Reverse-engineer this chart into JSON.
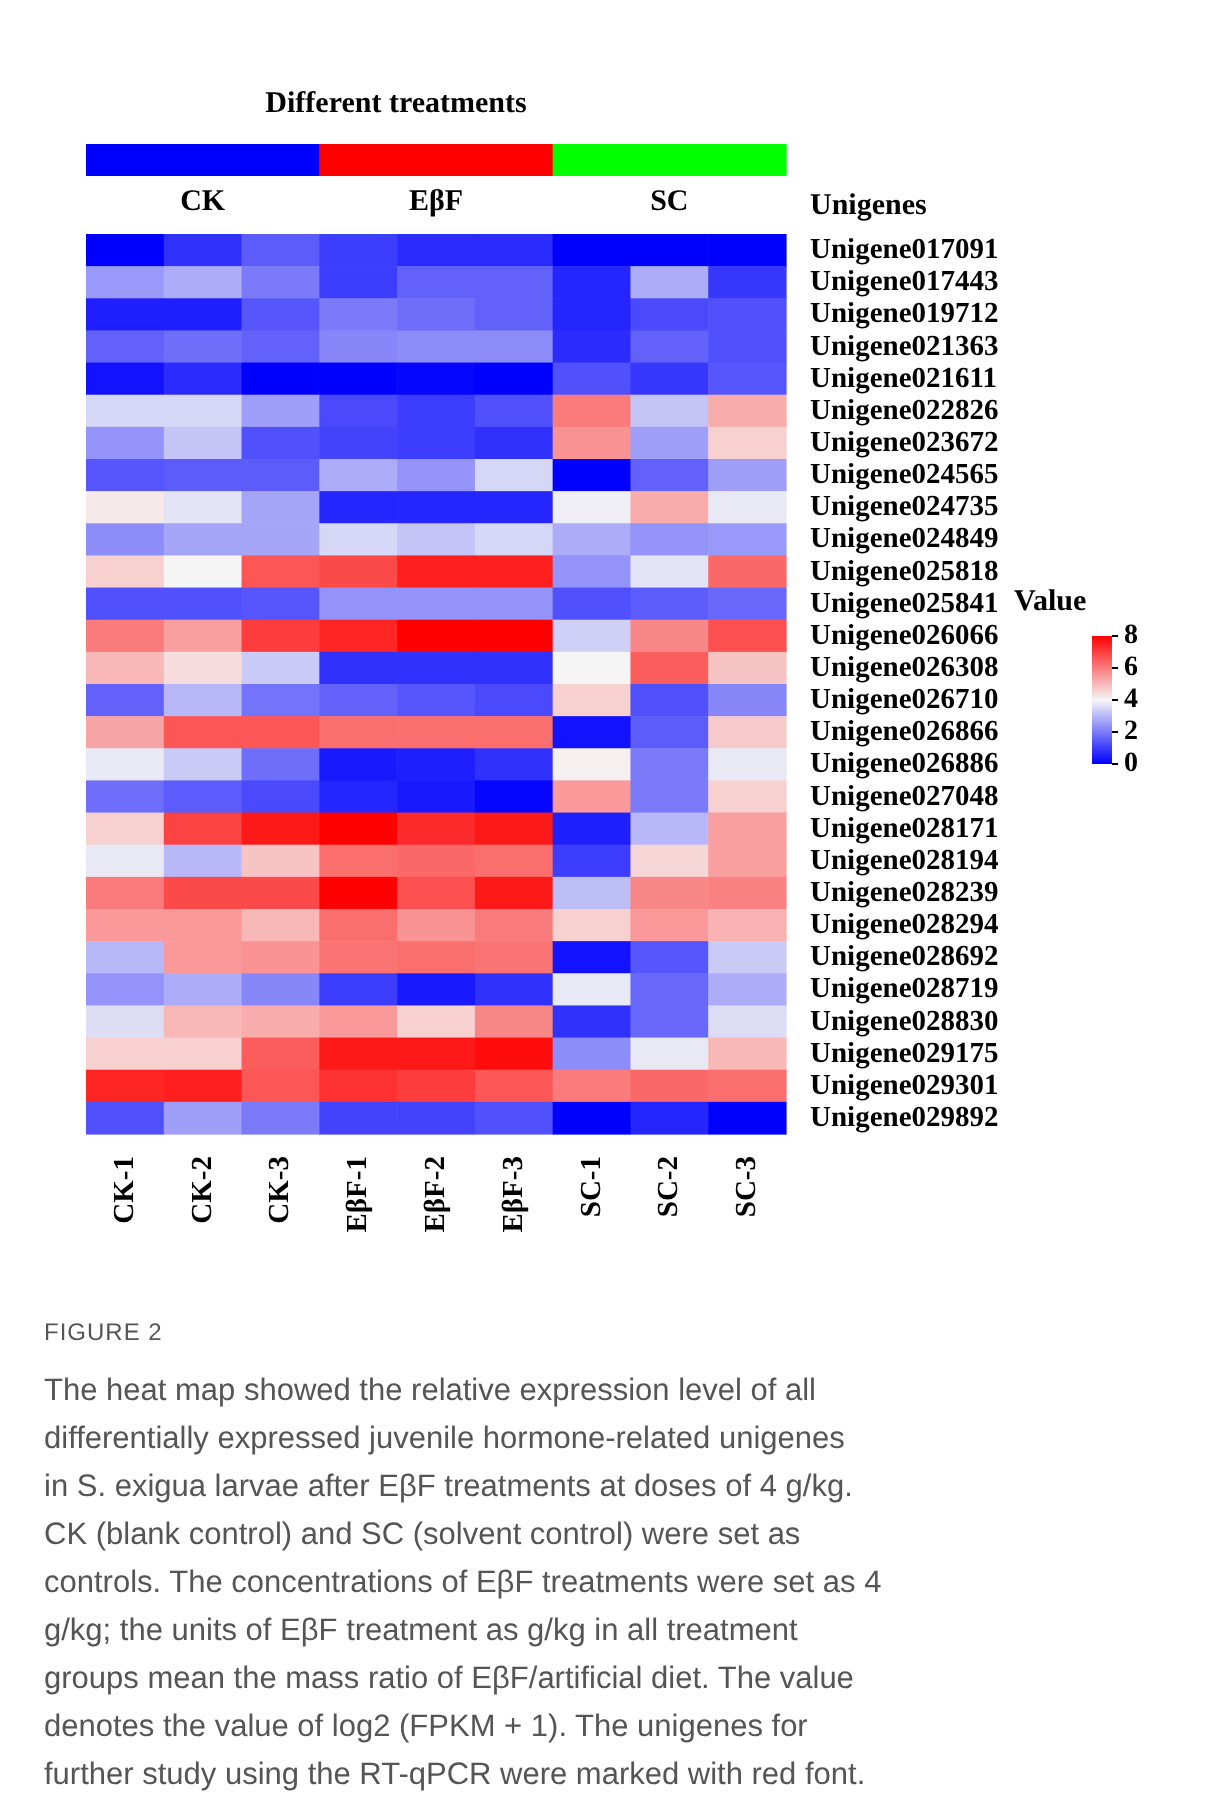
{
  "chart_data": {
    "type": "heatmap",
    "title": "Different treatments",
    "ylabel": "Unigenes",
    "clabel": "Value",
    "categories": [
      "CK-1",
      "CK-2",
      "CK-3",
      "EβF-1",
      "EβF-2",
      "EβF-3",
      "SC-1",
      "SC-2",
      "SC-3"
    ],
    "y_categories": [
      "Unigene017091",
      "Unigene017443",
      "Unigene019712",
      "Unigene021363",
      "Unigene021611",
      "Unigene022826",
      "Unigene023672",
      "Unigene024565",
      "Unigene024735",
      "Unigene024849",
      "Unigene025818",
      "Unigene025841",
      "Unigene026066",
      "Unigene026308",
      "Unigene026710",
      "Unigene026866",
      "Unigene026886",
      "Unigene027048",
      "Unigene028171",
      "Unigene028194",
      "Unigene028239",
      "Unigene028294",
      "Unigene028692",
      "Unigene028719",
      "Unigene028830",
      "Unigene029175",
      "Unigene029301",
      "Unigene029892"
    ],
    "cells": [
      [
        0,
        0.8,
        1.5,
        1,
        0.7,
        0.7,
        0,
        0,
        0
      ],
      [
        2.5,
        2.8,
        2,
        1,
        1.6,
        1.6,
        0.6,
        2.8,
        0.9
      ],
      [
        0.5,
        0.5,
        1.4,
        2,
        1.8,
        1.6,
        0.6,
        1.2,
        1.3
      ],
      [
        1.6,
        1.8,
        1.6,
        2.2,
        2.3,
        2.3,
        0.7,
        1.6,
        1.3
      ],
      [
        0.3,
        0.7,
        0,
        0,
        0.1,
        0,
        1.3,
        0.9,
        1.4
      ],
      [
        3.5,
        3.5,
        2.6,
        1.2,
        1,
        1.3,
        6,
        3.2,
        5.2
      ],
      [
        2.4,
        3.2,
        1.3,
        1.1,
        1,
        0.8,
        5.6,
        2.6,
        4.6
      ],
      [
        1.4,
        1.5,
        1.5,
        2.8,
        2.4,
        3.5,
        0,
        1.6,
        2.6
      ],
      [
        4.2,
        3.7,
        2.7,
        0.6,
        0.6,
        0.6,
        3.9,
        5.2,
        3.8
      ],
      [
        2.3,
        2.7,
        2.7,
        3.5,
        3.2,
        3.5,
        2.8,
        2.4,
        2.5
      ],
      [
        4.6,
        4,
        6.6,
        6.8,
        7.5,
        7.5,
        2.4,
        3.7,
        6.3
      ],
      [
        1.3,
        1.3,
        1.4,
        2.4,
        2.4,
        2.4,
        1.3,
        1.5,
        1.7
      ],
      [
        6,
        5.4,
        7,
        7.4,
        8,
        8,
        3.4,
        5.8,
        6.7
      ],
      [
        5,
        4.4,
        3.3,
        0.8,
        0.8,
        0.8,
        4,
        6.5,
        4.8
      ],
      [
        1.6,
        3,
        1.9,
        1.6,
        1.4,
        1.2,
        4.6,
        1.3,
        2.2
      ],
      [
        5.3,
        6.6,
        6.6,
        6.2,
        6.2,
        6.2,
        0.3,
        1.5,
        4.7
      ],
      [
        3.8,
        3.3,
        1.8,
        0.4,
        0.5,
        0.8,
        4.1,
        2,
        3.8
      ],
      [
        1.8,
        1.5,
        1.2,
        0.6,
        0.4,
        0.1,
        5.5,
        2,
        4.6
      ],
      [
        4.6,
        6.9,
        7.6,
        8,
        7.3,
        7.6,
        0.5,
        3,
        5.4
      ],
      [
        3.8,
        3,
        4.8,
        6.2,
        6.3,
        6.2,
        1,
        4.5,
        5.4
      ],
      [
        6,
        6.8,
        6.8,
        8,
        6.7,
        7.6,
        3.1,
        5.8,
        5.9
      ],
      [
        5.5,
        5.5,
        5,
        6.2,
        5.6,
        6,
        4.6,
        5.5,
        5.1
      ],
      [
        3,
        5.5,
        5.6,
        6.1,
        6.2,
        6.1,
        0.3,
        1.4,
        3.3
      ],
      [
        2.4,
        2.8,
        2.2,
        1,
        0.4,
        0.8,
        3.8,
        1.7,
        2.8
      ],
      [
        3.6,
        5,
        5.2,
        5.5,
        4.6,
        5.8,
        0.8,
        1.7,
        3.6
      ],
      [
        4.6,
        4.6,
        6.5,
        7.6,
        7.6,
        7.8,
        2.3,
        3.8,
        5
      ],
      [
        7.4,
        7.5,
        6.6,
        7.2,
        7,
        6.6,
        6,
        6.3,
        6.2
      ],
      [
        1.3,
        2.6,
        2,
        1.1,
        1.1,
        1.3,
        0,
        0.6,
        0
      ]
    ],
    "colors": [
      "#0000ff",
      "#f5f5f5",
      "#ff0000"
    ],
    "clim": [
      0,
      8
    ],
    "cticks": [
      0,
      2,
      4,
      6,
      8
    ],
    "annotations": [
      "FIGURE 2",
      "The heat map showed the relative expression level of all differentially expressed juvenile hormone-related unigenes in S. exigua larvae after EβF treatments at doses of 4 g/kg. CK (blank control) and SC (solvent control) were set as controls. The concentrations of EβF treatments were set as 4 g/kg; the units of EβF treatment as g/kg in all treatment groups mean the mass ratio of EβF/artificial diet. The value denotes the value of log2 (FPKM + 1). The unigenes for further study using the RT-qPCR were marked with red font.",
      "CK",
      "EβF",
      "SC"
    ]
  }
}
